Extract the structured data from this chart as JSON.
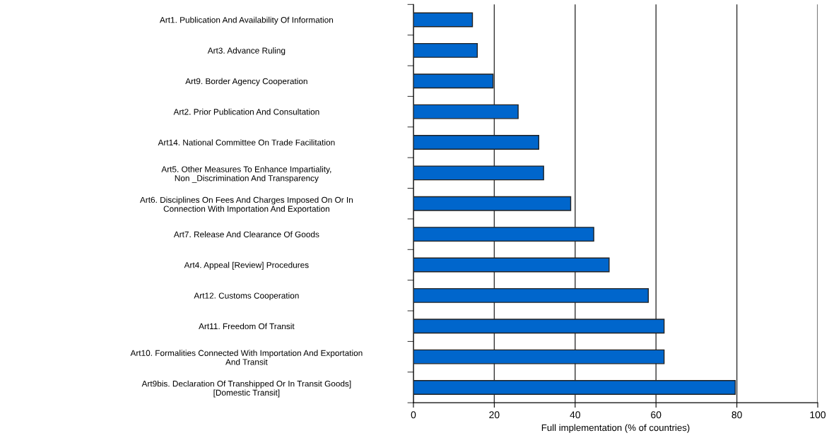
{
  "chart_data": {
    "type": "bar",
    "orientation": "horizontal",
    "xlabel": "Full implementation (% of countries)",
    "categories": [
      "Art1. Publication And Availability Of Information",
      "Art3. Advance Ruling",
      "Art9. Border Agency Cooperation",
      "Art2. Prior Publication And Consultation",
      "Art14. National Committee On Trade Facilitation",
      "Art5. Other Measures To Enhance Impartiality,\nNon _Discrimination And Transparency",
      "Art6. Disciplines On Fees And Charges Imposed On Or In\nConnection With Importation And Exportation",
      "Art7. Release And Clearance Of Goods",
      "Art4. Appeal [Review] Procedures",
      "Art12. Customs Cooperation",
      "Art11. Freedom Of Transit",
      "Art10. Formalities Connected With Importation And Exportation\nAnd Transit",
      "Art9bis. Declaration Of Transhipped Or In Transit Goods]\n[Domestic Transit]"
    ],
    "values": [
      14.6,
      15.8,
      19.7,
      25.9,
      31.0,
      32.2,
      38.9,
      44.6,
      48.4,
      58.1,
      62.0,
      62.0,
      79.6
    ],
    "color": "#0066cc",
    "xlim": [
      0,
      100
    ],
    "xticks": [
      0,
      20,
      40,
      60,
      80,
      100
    ],
    "grid": "x"
  }
}
